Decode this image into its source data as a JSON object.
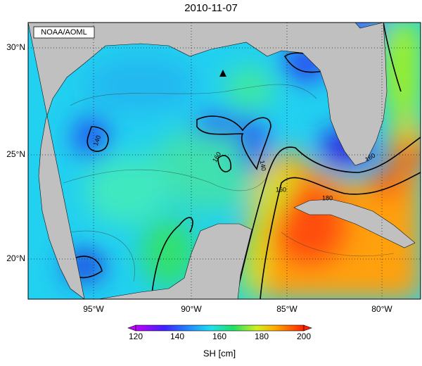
{
  "title": "2010-11-07",
  "credit": "NOAA/AOML",
  "lat_labels": [
    "30°N",
    "25°N",
    "20°N"
  ],
  "lon_labels": [
    "95°W",
    "90°W",
    "85°W",
    "80°W"
  ],
  "contour_labels": [
    "140",
    "160",
    "160",
    "180",
    "140",
    "160"
  ],
  "colorbar": {
    "ticks": [
      "120",
      "140",
      "160",
      "180",
      "200"
    ],
    "label": "SH [cm]"
  }
}
